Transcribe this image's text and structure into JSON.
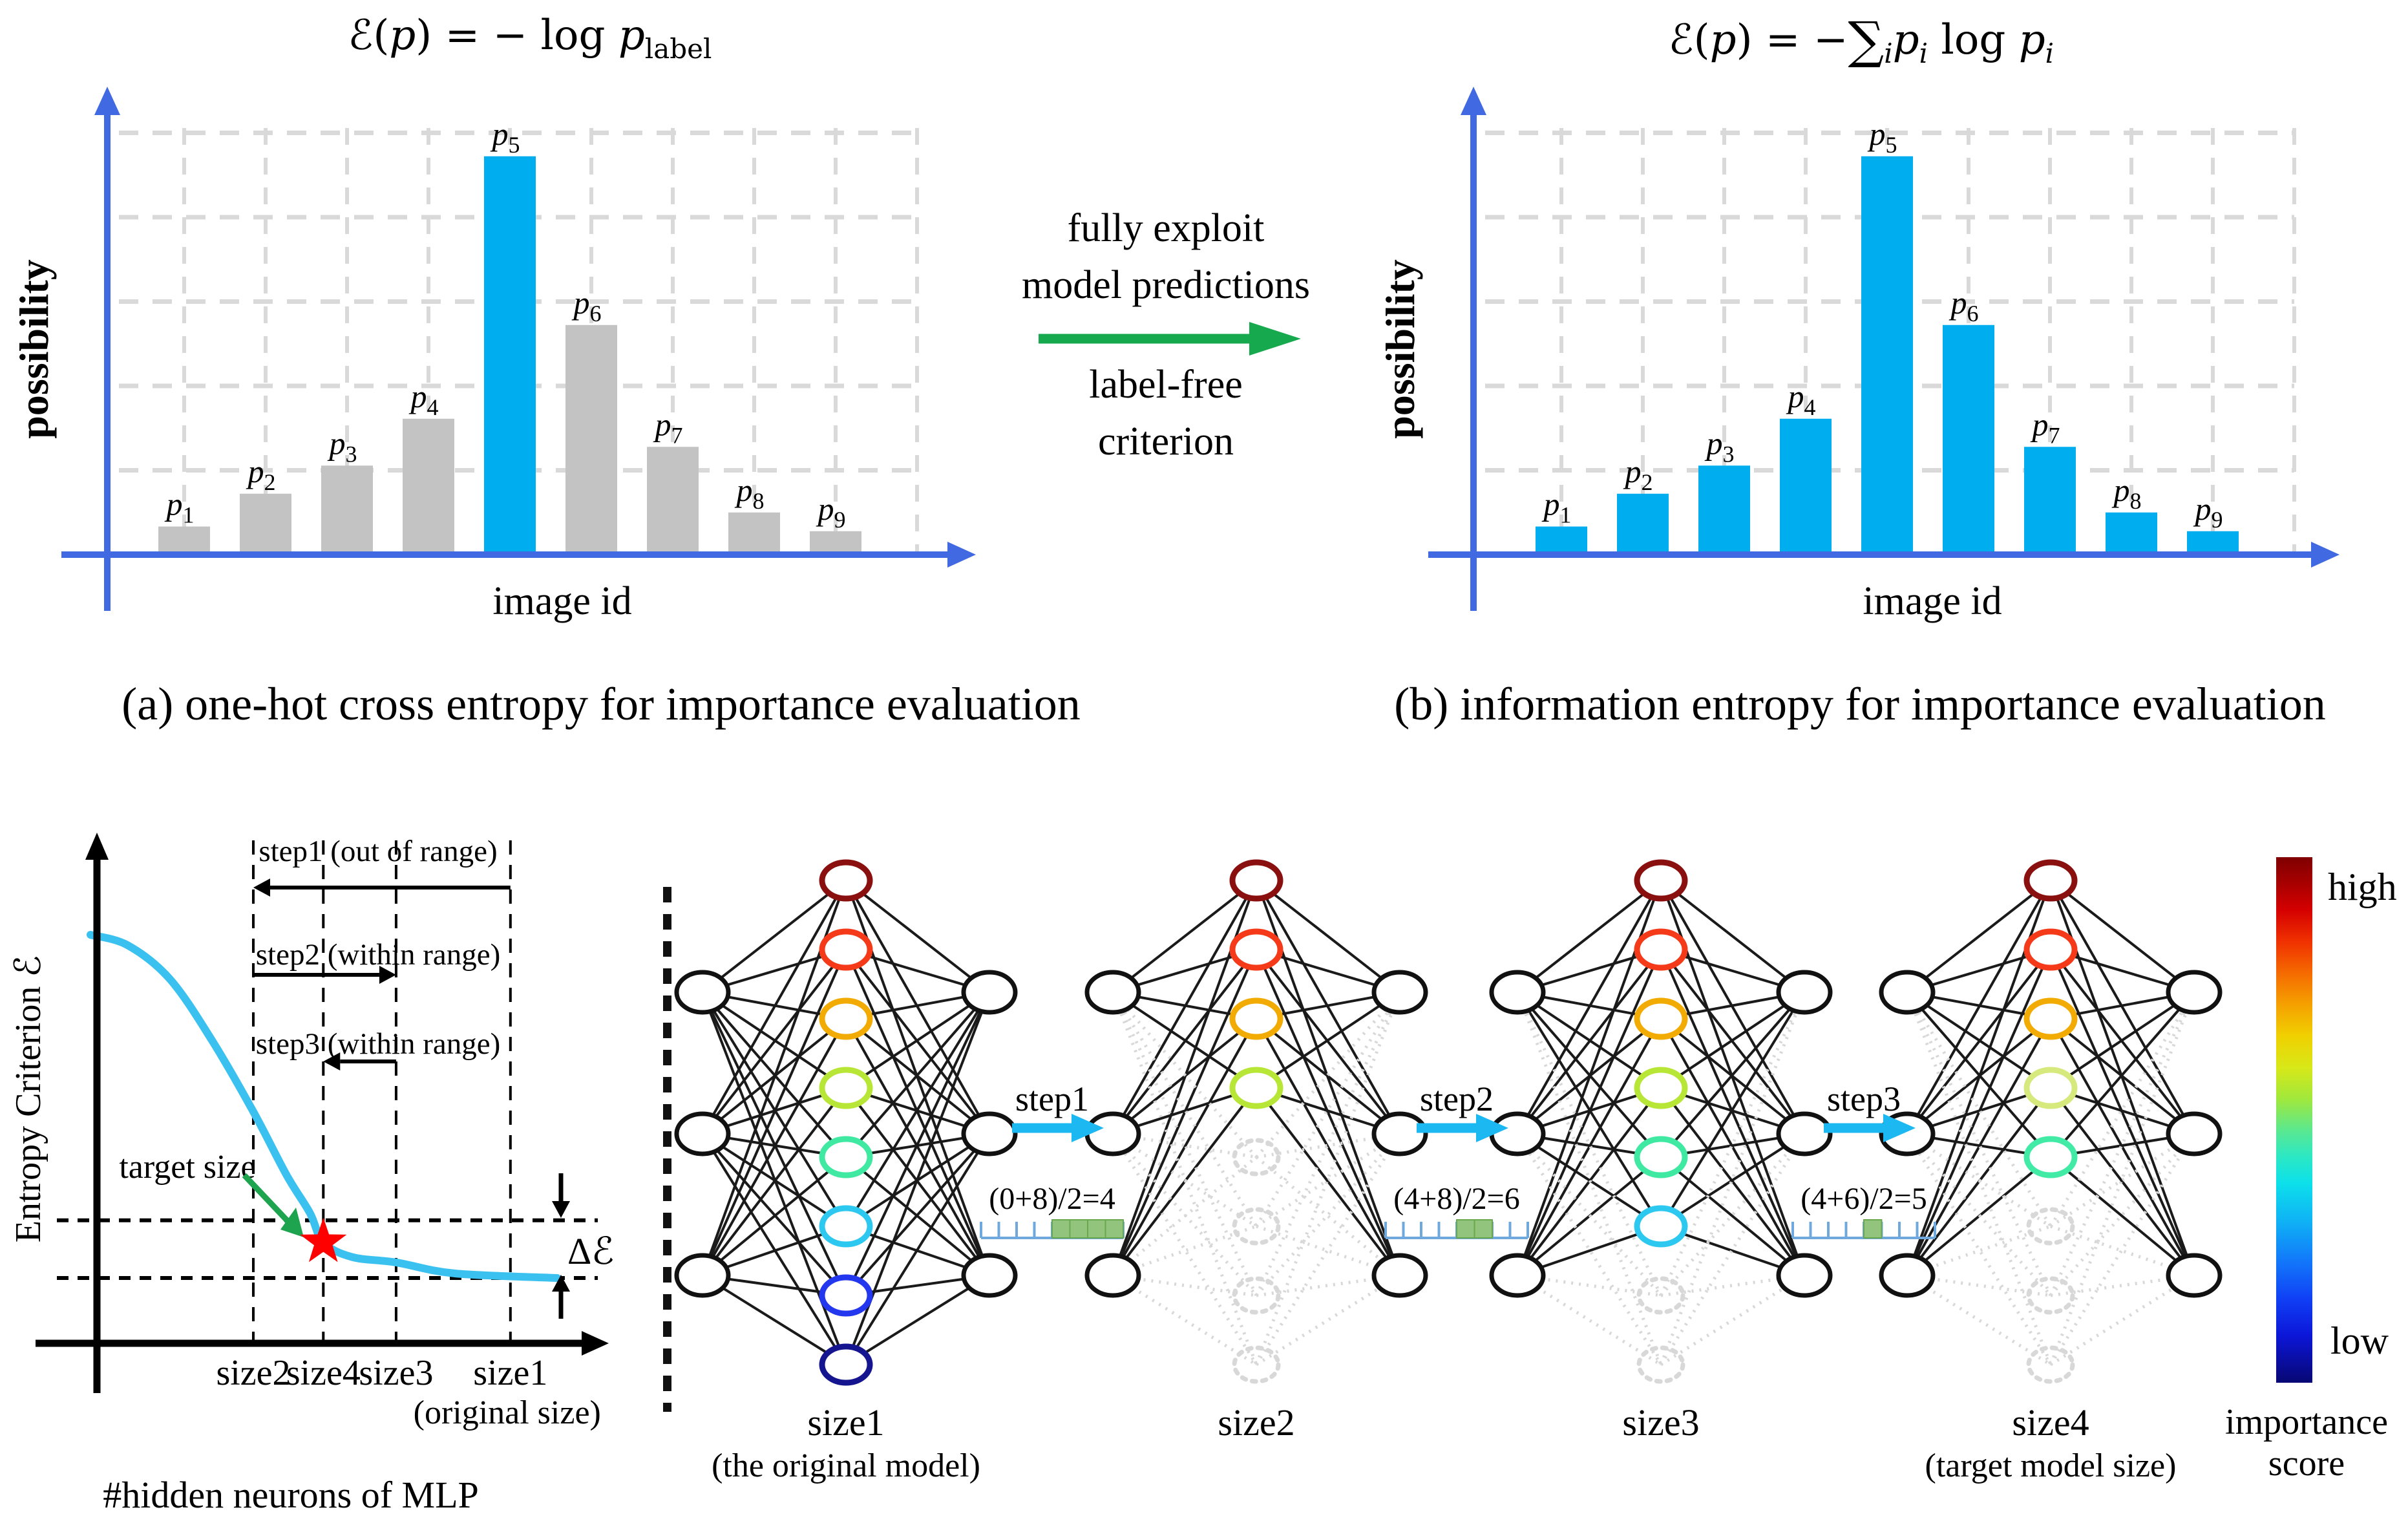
{
  "figure": {
    "panel_a": {
      "formula": {
        "f1": "ℰ(",
        "f2": "p",
        "f3": ") = − log ",
        "f4": "p",
        "f5": "label"
      },
      "caption": "(a) one-hot cross entropy for importance evaluation"
    },
    "panel_b": {
      "formula": {
        "f1": "ℰ(",
        "f2": "p",
        "f3": ") = −",
        "f4": "∑",
        "f5": "i",
        "f6": "p",
        "f7": "i",
        "f8": " log ",
        "f9": "p",
        "f10": "i"
      },
      "caption": "(b) information entropy for importance evaluation"
    },
    "transition": {
      "top_line1": "fully exploit",
      "top_line2": "model predictions",
      "bottom_line1": "label-free",
      "bottom_line2": "criterion",
      "arrow_color": "#17a94e"
    }
  },
  "chart_data": [
    {
      "type": "bar",
      "id": "one_hot_cross_entropy",
      "title": "E(p) = -log p_label",
      "ylabel": "possibility",
      "xlabel": "image id",
      "categories": [
        "p1",
        "p2",
        "p3",
        "p4",
        "p5",
        "p6",
        "p7",
        "p8",
        "p9"
      ],
      "values": [
        0.06,
        0.13,
        0.19,
        0.29,
        0.85,
        0.49,
        0.23,
        0.09,
        0.05
      ],
      "ylim": [
        0,
        1
      ],
      "grid": true,
      "legend": false,
      "bar_color": "#c3c3c3",
      "highlight_index": 4,
      "highlight_color": "#00aeef",
      "axis_color": "#4169e1",
      "grid_color": "#d9d9d9"
    },
    {
      "type": "bar",
      "id": "information_entropy",
      "title": "E(p) = -sum_i p_i log p_i",
      "ylabel": "possibility",
      "xlabel": "image id",
      "categories": [
        "p1",
        "p2",
        "p3",
        "p4",
        "p5",
        "p6",
        "p7",
        "p8",
        "p9"
      ],
      "values": [
        0.06,
        0.13,
        0.19,
        0.29,
        0.85,
        0.49,
        0.23,
        0.09,
        0.05
      ],
      "ylim": [
        0,
        1
      ],
      "grid": true,
      "legend": false,
      "bar_color": "#00aeef",
      "highlight_index": -1,
      "highlight_color": "#00aeef",
      "axis_color": "#4169e1",
      "grid_color": "#d9d9d9"
    },
    {
      "type": "line",
      "id": "entropy_criterion_curve",
      "ylabel": "Entropy Criterion ℰ",
      "xlabel": "#hidden neurons of MLP",
      "line_color": "#3bc1f0",
      "points": [
        [
          0,
          0.97
        ],
        [
          0.08,
          0.945
        ],
        [
          0.17,
          0.865
        ],
        [
          0.26,
          0.72
        ],
        [
          0.349,
          0.55
        ],
        [
          0.42,
          0.4
        ],
        [
          0.47,
          0.31
        ],
        [
          0.499,
          0.24
        ],
        [
          0.56,
          0.205
        ],
        [
          0.655,
          0.192
        ],
        [
          0.78,
          0.166
        ],
        [
          1.0,
          0.155
        ]
      ],
      "x_ticks": [
        {
          "label": "size2",
          "pos": 0.349
        },
        {
          "label": "size4",
          "pos": 0.499
        },
        {
          "label": "size3",
          "pos": 0.655
        },
        {
          "label": "size1",
          "pos": 0.9
        }
      ],
      "x_tick_note": {
        "label": "(original size)",
        "pos": 0.893
      },
      "delta_band": {
        "upper": 0.292,
        "lower": 0.155,
        "label": "Δℰ"
      },
      "marker": {
        "x": 0.499,
        "y": 0.24,
        "label": "target size",
        "color": "#ff0000",
        "arrow_color": "#1ea34f"
      },
      "step_arrows": [
        {
          "label": "step1 (out of range)",
          "from": 0.9,
          "to": 0.349
        },
        {
          "label": "step2 (within range)",
          "from": 0.349,
          "to": 0.655
        },
        {
          "label": "step3 (within range)",
          "from": 0.655,
          "to": 0.499
        }
      ]
    }
  ],
  "pruning_flow": {
    "hidden_slots": 8,
    "inputs": 3,
    "outputs": 3,
    "networks": [
      {
        "label": "size1",
        "sublabel": "(the original model)",
        "active_hidden": 8,
        "node_colors": [
          "#8a0f0f",
          "#f53a1a",
          "#f2ab02",
          "#b8e637",
          "#3fe9a2",
          "#2cc8f0",
          "#2337ee",
          "#15168f"
        ]
      },
      {
        "label": "size2",
        "sublabel": "",
        "active_hidden": 4,
        "node_colors": [
          "#8a0f0f",
          "#f53a1a",
          "#f2ab02",
          "#b8e637"
        ]
      },
      {
        "label": "size3",
        "sublabel": "",
        "active_hidden": 6,
        "node_colors": [
          "#8a0f0f",
          "#f53a1a",
          "#f2ab02",
          "#b8e637",
          "#3fe9a2",
          "#2cc8f0"
        ]
      },
      {
        "label": "size4",
        "sublabel": "(target model size)",
        "active_hidden": 5,
        "node_colors": [
          "#8a0f0f",
          "#f53a1a",
          "#f2ab02",
          "#d6e97c",
          "#41eba6"
        ]
      }
    ],
    "steps": [
      {
        "label": "step1",
        "formula": "(0+8)/2=4",
        "cells": 8,
        "green_cells": [
          4,
          5,
          6,
          7
        ]
      },
      {
        "label": "step2",
        "formula": "(4+8)/2=6",
        "cells": 8,
        "green_cells": [
          4,
          5
        ]
      },
      {
        "label": "step3",
        "formula": "(4+6)/2=5",
        "cells": 8,
        "green_cells": [
          4
        ]
      }
    ],
    "colorbar": {
      "high": "high",
      "low": "low",
      "caption": [
        "importance",
        "score"
      ]
    },
    "colors": {
      "active_edge": "#1a1a1a",
      "ghost": "#d8d8d8",
      "node_outline": "#111111",
      "step_arrow": "#1cb8f2",
      "ruler_tick": "#6fa8dc",
      "ruler_fill": "#93c47d",
      "ruler_fill_border": "#6aa84f"
    }
  }
}
